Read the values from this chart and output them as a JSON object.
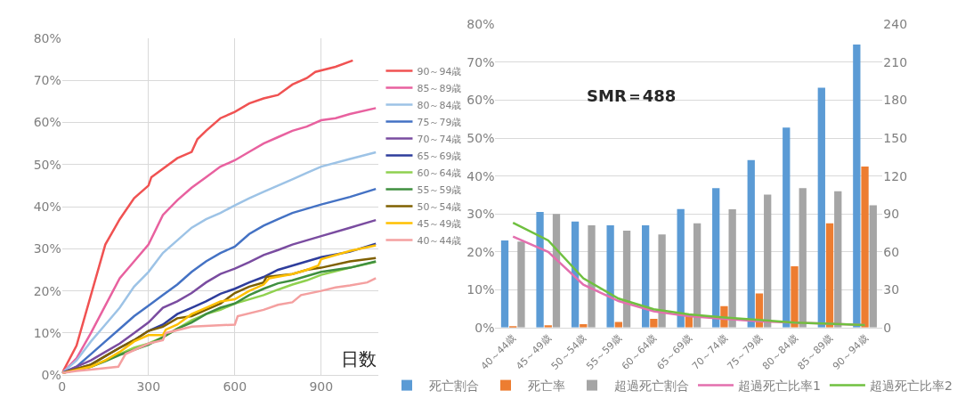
{
  "chart_data": [
    {
      "type": "line",
      "xlabel": "日数",
      "legend": "right",
      "grid": true,
      "marker": "none",
      "line_style": "solid",
      "xlim": [
        0,
        1100
      ],
      "xticks": [
        0,
        300,
        600,
        900
      ],
      "ylim": [
        0,
        80
      ],
      "yticks": [
        {
          "value": 0,
          "label": "0%"
        },
        {
          "value": 10,
          "label": "10%"
        },
        {
          "value": 20,
          "label": "20%"
        },
        {
          "value": 30,
          "label": "30%"
        },
        {
          "value": 40,
          "label": "40%"
        },
        {
          "value": 50,
          "label": "50%"
        },
        {
          "value": 60,
          "label": "60%"
        },
        {
          "value": 70,
          "label": "70%"
        },
        {
          "value": 80,
          "label": "80%"
        }
      ],
      "series": [
        {
          "name": "90～94歳",
          "color": "#f05252",
          "x": [
            0,
            50,
            100,
            150,
            200,
            250,
            300,
            310,
            400,
            450,
            470,
            500,
            550,
            600,
            650,
            700,
            750,
            800,
            850,
            880,
            950,
            1010
          ],
          "values": [
            0.5,
            7,
            19,
            31,
            37,
            42,
            45,
            47,
            51.5,
            53,
            56,
            58,
            61,
            62.5,
            64.5,
            65.7,
            66.5,
            69,
            70.5,
            72,
            73.2,
            74.7
          ]
        },
        {
          "name": "85～89歳",
          "color": "#e8619f",
          "x": [
            0,
            50,
            100,
            150,
            200,
            250,
            300,
            350,
            400,
            450,
            500,
            550,
            600,
            650,
            700,
            750,
            800,
            850,
            900,
            950,
            1000,
            1090
          ],
          "values": [
            0.5,
            4,
            10,
            16.5,
            23,
            27,
            31,
            38,
            41.5,
            44.5,
            47,
            49.5,
            51,
            53,
            55,
            56.5,
            58,
            59,
            60.5,
            61,
            62,
            63.4
          ]
        },
        {
          "name": "80～84歳",
          "color": "#9dc3e6",
          "x": [
            0,
            50,
            100,
            150,
            200,
            250,
            300,
            350,
            400,
            450,
            500,
            550,
            600,
            650,
            700,
            750,
            800,
            850,
            900,
            1000,
            1090
          ],
          "values": [
            0.5,
            3.5,
            8,
            12,
            16,
            21,
            24.5,
            29,
            32,
            35,
            37,
            38.5,
            40.3,
            42,
            43.5,
            45,
            46.5,
            48,
            49.5,
            51.3,
            52.9
          ]
        },
        {
          "name": "75～79歳",
          "color": "#4472c4",
          "x": [
            0,
            50,
            100,
            150,
            200,
            250,
            300,
            350,
            400,
            450,
            500,
            550,
            600,
            650,
            700,
            750,
            800,
            850,
            900,
            1000,
            1090
          ],
          "values": [
            0.5,
            2,
            5,
            8,
            11,
            14,
            16.5,
            19,
            21.5,
            24.5,
            27,
            29,
            30.5,
            33.5,
            35.5,
            37,
            38.5,
            39.5,
            40.5,
            42.3,
            44.2
          ]
        },
        {
          "name": "70～74歳",
          "color": "#7a4ca0",
          "x": [
            0,
            100,
            150,
            200,
            250,
            300,
            350,
            400,
            450,
            500,
            550,
            600,
            650,
            700,
            750,
            800,
            850,
            900,
            1000,
            1090
          ],
          "values": [
            0.5,
            3.5,
            5.5,
            7.5,
            10,
            12.5,
            16,
            17.5,
            19.5,
            22,
            24,
            25.3,
            26.8,
            28.5,
            29.7,
            31,
            32,
            33,
            35,
            36.8
          ]
        },
        {
          "name": "65～69歳",
          "color": "#2e3d9c",
          "x": [
            0,
            100,
            150,
            200,
            250,
            300,
            350,
            400,
            450,
            500,
            550,
            600,
            650,
            700,
            750,
            800,
            850,
            900,
            1000,
            1090
          ],
          "values": [
            0.5,
            2.5,
            4.5,
            6.5,
            8.3,
            10.5,
            12,
            14.5,
            16,
            17.5,
            19.3,
            20.5,
            22,
            23.3,
            25,
            26,
            27,
            28,
            29.3,
            31.2
          ]
        },
        {
          "name": "60～64歳",
          "color": "#8fd14f",
          "x": [
            0,
            100,
            150,
            200,
            250,
            300,
            350,
            400,
            450,
            500,
            550,
            600,
            650,
            700,
            750,
            800,
            850,
            900,
            1000,
            1090
          ],
          "values": [
            0.5,
            2,
            3.5,
            5,
            6.5,
            7.5,
            9,
            11,
            13,
            14.5,
            15.5,
            17,
            18,
            19,
            20.3,
            21.5,
            22.5,
            23.8,
            25.5,
            26.9
          ]
        },
        {
          "name": "55～59歳",
          "color": "#3f8f3f",
          "x": [
            0,
            100,
            150,
            200,
            250,
            300,
            350,
            400,
            450,
            500,
            550,
            600,
            650,
            700,
            750,
            800,
            850,
            900,
            1000,
            1090
          ],
          "values": [
            0.5,
            2,
            3.3,
            4.8,
            6,
            7.2,
            9,
            11,
            12.5,
            14.5,
            16,
            17,
            19,
            20.5,
            21.8,
            22.5,
            23.5,
            24.5,
            25.5,
            27
          ]
        },
        {
          "name": "50～54歳",
          "color": "#7f6000",
          "x": [
            0,
            100,
            150,
            200,
            250,
            300,
            350,
            400,
            450,
            500,
            550,
            600,
            650,
            700,
            710,
            800,
            850,
            900,
            1000,
            1090
          ],
          "values": [
            0.5,
            2.5,
            4.5,
            6.5,
            8.3,
            10.5,
            11.5,
            13.5,
            14,
            15.5,
            17,
            19.5,
            21,
            22,
            23.3,
            24,
            25,
            25.5,
            27,
            27.8
          ]
        },
        {
          "name": "45～49歳",
          "color": "#ffc000",
          "x": [
            0,
            100,
            150,
            200,
            250,
            300,
            350,
            360,
            400,
            450,
            500,
            550,
            600,
            650,
            700,
            720,
            800,
            850,
            890,
            900,
            1000,
            1090
          ],
          "values": [
            0.5,
            2,
            3.5,
            5.5,
            8,
            9.5,
            9.5,
            10.8,
            12,
            14.5,
            16,
            17.5,
            18,
            20,
            21.5,
            23,
            24,
            25,
            26,
            27.5,
            29.5,
            30.8
          ]
        },
        {
          "name": "40～44歳",
          "color": "#f4a0a0",
          "x": [
            0,
            50,
            100,
            195,
            220,
            300,
            350,
            360,
            450,
            600,
            610,
            700,
            750,
            800,
            830,
            900,
            950,
            1000,
            1060,
            1090
          ],
          "values": [
            0.5,
            1,
            1.3,
            2,
            5,
            7.5,
            8.3,
            10,
            11.5,
            12,
            14,
            15.5,
            16.7,
            17.3,
            19,
            20,
            20.8,
            21.3,
            22,
            23
          ]
        }
      ]
    },
    {
      "type": "bar",
      "legend": "bottom",
      "grid": "y",
      "annotations": [
        "SMR＝488"
      ],
      "categories": [
        "40～44歳",
        "45～49歳",
        "50～54歳",
        "55～59歳",
        "60～64歳",
        "65～69歳",
        "70～74歳",
        "75～79歳",
        "80～84歳",
        "85～89歳",
        "90～94歳"
      ],
      "ylim": [
        0,
        80
      ],
      "yticks": [
        {
          "value": 0,
          "label": "0%"
        },
        {
          "value": 10,
          "label": "10%"
        },
        {
          "value": 20,
          "label": "20%"
        },
        {
          "value": 30,
          "label": "30%"
        },
        {
          "value": 40,
          "label": "40%"
        },
        {
          "value": 50,
          "label": "50%"
        },
        {
          "value": 60,
          "label": "60%"
        },
        {
          "value": 70,
          "label": "70%"
        },
        {
          "value": 80,
          "label": "80%"
        }
      ],
      "y2lim": [
        0,
        240
      ],
      "y2ticks": [
        0,
        30,
        60,
        90,
        120,
        150,
        180,
        210,
        240
      ],
      "series": [
        {
          "name": "死亡割合",
          "type": "bar",
          "color": "#5b9bd5",
          "values": [
            23,
            30.5,
            28,
            27,
            27,
            31.3,
            36.8,
            44.2,
            52.8,
            63.3,
            74.7
          ]
        },
        {
          "name": "死亡率",
          "type": "bar",
          "axis": "y2",
          "color": "#ed7d31",
          "values": [
            1.2,
            1.8,
            2.7,
            4.5,
            6.9,
            10,
            17,
            27,
            48.6,
            82.5,
            127.5
          ]
        },
        {
          "name": "超過死亡割合",
          "type": "bar",
          "color": "#a5a5a5",
          "values": [
            22.7,
            30,
            27,
            25.6,
            24.6,
            27.5,
            31.2,
            35.1,
            36.8,
            36,
            32.3
          ]
        },
        {
          "name": "超過死亡比率1",
          "type": "line",
          "axis": "y2",
          "color": "#e36fae",
          "values": [
            72,
            60,
            34,
            21,
            13,
            9,
            7,
            5,
            4,
            3,
            2
          ]
        },
        {
          "name": "超過死亡比率2",
          "type": "line",
          "axis": "y2",
          "color": "#70c040",
          "values": [
            83,
            69,
            39,
            23,
            14.5,
            10.5,
            8,
            6,
            4,
            3,
            2
          ]
        }
      ]
    }
  ]
}
